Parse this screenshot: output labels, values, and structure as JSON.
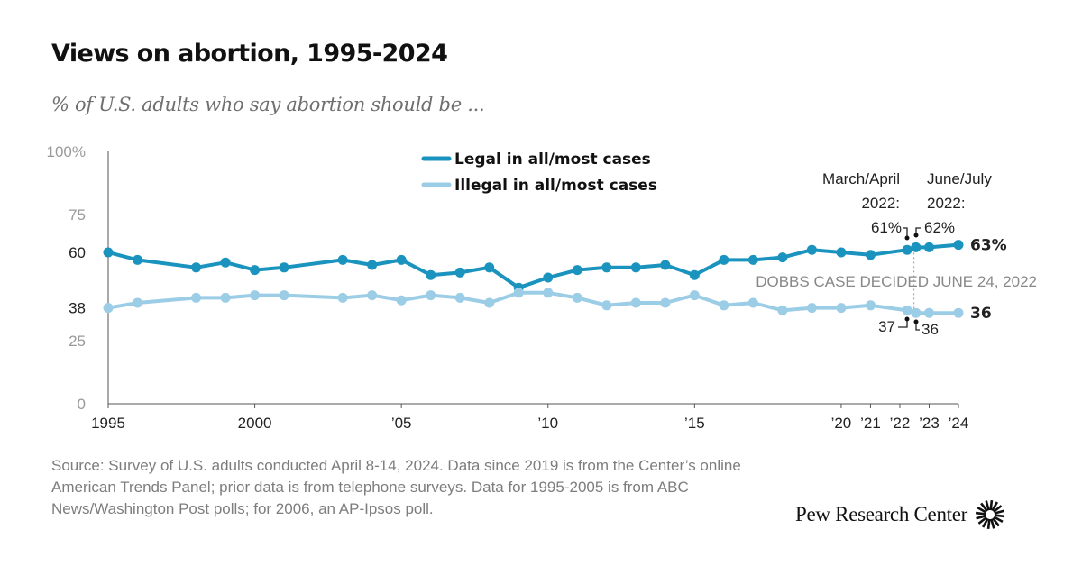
{
  "header": {
    "title": "Views on abortion, 1995-2024",
    "subtitle": "% of U.S. adults who say abortion should be ..."
  },
  "chart_data": {
    "type": "line",
    "x_ticks": [
      {
        "x": 1995,
        "label": "1995"
      },
      {
        "x": 2000,
        "label": "2000"
      },
      {
        "x": 2005,
        "label": "’05"
      },
      {
        "x": 2010,
        "label": "’10"
      },
      {
        "x": 2015,
        "label": "’15"
      },
      {
        "x": 2020,
        "label": "’20"
      },
      {
        "x": 2021,
        "label": "’21"
      },
      {
        "x": 2022,
        "label": "’22"
      },
      {
        "x": 2023,
        "label": "’23"
      },
      {
        "x": 2024,
        "label": "’24"
      }
    ],
    "y_ticks": [
      {
        "y": 100,
        "label": "100%",
        "kind": "axis"
      },
      {
        "y": 75,
        "label": "75",
        "kind": "axis"
      },
      {
        "y": 60,
        "label": "60",
        "kind": "value"
      },
      {
        "y": 38,
        "label": "38",
        "kind": "value"
      },
      {
        "y": 25,
        "label": "25",
        "kind": "axis"
      },
      {
        "y": 0,
        "label": "0",
        "kind": "axis"
      }
    ],
    "ylim": [
      0,
      100
    ],
    "xlim": [
      1995,
      2024
    ],
    "series": [
      {
        "name": "Legal in all/most cases",
        "color": "#1a93be",
        "points": [
          [
            1995,
            60
          ],
          [
            1996,
            57
          ],
          [
            1998,
            54
          ],
          [
            1999,
            56
          ],
          [
            2000,
            53
          ],
          [
            2001,
            54
          ],
          [
            2003,
            57
          ],
          [
            2004,
            55
          ],
          [
            2005,
            57
          ],
          [
            2006,
            51
          ],
          [
            2007,
            52
          ],
          [
            2008,
            54
          ],
          [
            2009,
            46
          ],
          [
            2010,
            50
          ],
          [
            2011,
            53
          ],
          [
            2012,
            54
          ],
          [
            2013,
            54
          ],
          [
            2014,
            55
          ],
          [
            2015,
            51
          ],
          [
            2016,
            57
          ],
          [
            2017,
            57
          ],
          [
            2018,
            58
          ],
          [
            2019,
            61
          ],
          [
            2020,
            60
          ],
          [
            2021,
            59
          ],
          [
            2022.25,
            61
          ],
          [
            2022.55,
            62
          ],
          [
            2023,
            62
          ],
          [
            2024,
            63
          ]
        ]
      },
      {
        "name": "Illegal in all/most cases",
        "color": "#9bcde6",
        "points": [
          [
            1995,
            38
          ],
          [
            1996,
            40
          ],
          [
            1998,
            42
          ],
          [
            1999,
            42
          ],
          [
            2000,
            43
          ],
          [
            2001,
            43
          ],
          [
            2003,
            42
          ],
          [
            2004,
            43
          ],
          [
            2005,
            41
          ],
          [
            2006,
            43
          ],
          [
            2007,
            42
          ],
          [
            2008,
            40
          ],
          [
            2009,
            44
          ],
          [
            2010,
            44
          ],
          [
            2011,
            42
          ],
          [
            2012,
            39
          ],
          [
            2013,
            40
          ],
          [
            2014,
            40
          ],
          [
            2015,
            43
          ],
          [
            2016,
            39
          ],
          [
            2017,
            40
          ],
          [
            2018,
            37
          ],
          [
            2019,
            38
          ],
          [
            2020,
            38
          ],
          [
            2021,
            39
          ],
          [
            2022.25,
            37
          ],
          [
            2022.55,
            36
          ],
          [
            2023,
            36
          ],
          [
            2024,
            36
          ]
        ]
      }
    ],
    "legend": [
      {
        "label": "Legal in all/most cases",
        "color": "#1a93be"
      },
      {
        "label": "Illegal in all/most cases",
        "color": "#9bcde6"
      }
    ],
    "end_labels": {
      "legal": "63%",
      "illegal": "36"
    },
    "dobbs": {
      "x": 2022.48,
      "label": "DOBBS CASE DECIDED JUNE 24, 2022"
    },
    "callouts": {
      "march_april": {
        "line1": "March/April",
        "line2": "2022:",
        "legal": "61%",
        "illegal": "37"
      },
      "june_july": {
        "line1": "June/July",
        "line2": "2022:",
        "legal": "62%",
        "illegal": "36"
      }
    }
  },
  "footer": {
    "source": "Source: Survey of U.S. adults conducted April 8-14, 2024. Data since 2019 is from the Center’s online American Trends Panel; prior data is from telephone surveys. Data for 1995-2005 is from ABC News/Washington Post polls; for 2006, an AP-Ipsos poll.",
    "brand": "Pew Research Center"
  }
}
